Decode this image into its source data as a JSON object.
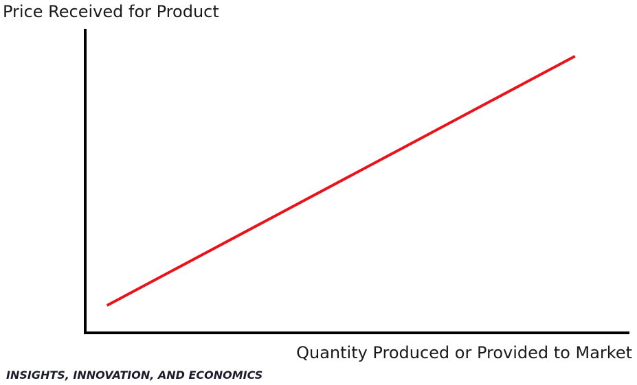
{
  "footer": "INSIGHTS, INNOVATION, AND ECONOMICS",
  "colors": {
    "line": "#e8141c",
    "axis": "#000000",
    "text": "#1a1a1a"
  },
  "chart_data": {
    "type": "line",
    "title": "",
    "xlabel": "Quantity Produced or Provided to Market",
    "ylabel": "Price Received for Product",
    "series": [
      {
        "x": [
          0.04,
          0.9
        ],
        "y": [
          0.09,
          0.91
        ]
      }
    ],
    "xlim": [
      0,
      1
    ],
    "ylim": [
      0,
      1
    ],
    "grid": false,
    "ticks": false
  }
}
